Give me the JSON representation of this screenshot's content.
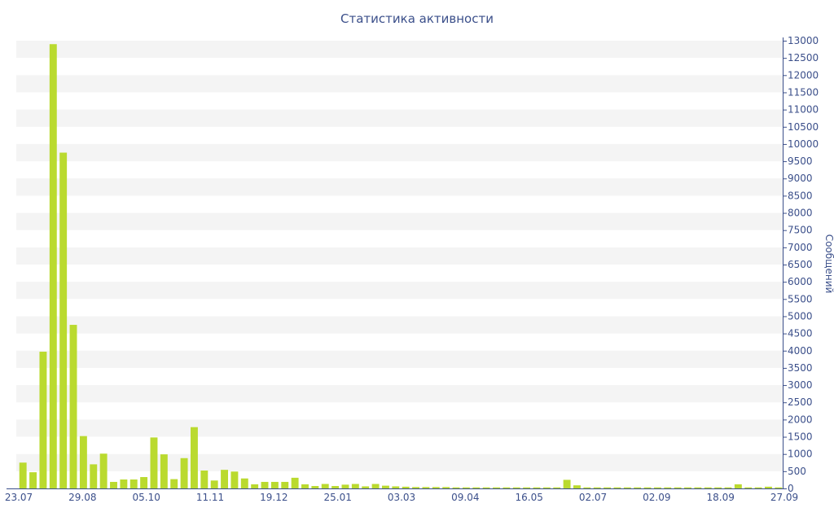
{
  "chart_data": {
    "type": "bar",
    "title": "Статистика активности",
    "xlabel": "",
    "ylabel": "Сообщений",
    "y_axis_side": "right",
    "ylim": [
      0,
      13000
    ],
    "ytick_step": 500,
    "grid": "alternating horizontal bands",
    "bar_color": "#bada2f",
    "x_tick_labels": [
      "23.07",
      "29.08",
      "05.10",
      "11.11",
      "19.12",
      "25.01",
      "03.03",
      "09.04",
      "16.05",
      "02.07",
      "02.09",
      "18.09",
      "27.09"
    ],
    "series": [
      {
        "values": [
          750,
          470,
          3970,
          12900,
          9750,
          4750,
          1520,
          700,
          1010,
          190,
          260,
          260,
          330,
          1480,
          990,
          270,
          880,
          1780,
          520,
          230,
          540,
          490,
          290,
          120,
          190,
          190,
          190,
          310,
          120,
          70,
          130,
          70,
          110,
          130,
          60,
          130,
          80,
          60,
          50,
          40,
          40,
          40,
          40,
          30,
          30,
          30,
          30,
          30,
          30,
          30,
          30,
          30,
          30,
          30,
          250,
          90,
          30,
          30,
          30,
          30,
          30,
          30,
          30,
          30,
          30,
          30,
          30,
          30,
          30,
          30,
          30,
          120,
          30,
          30,
          50,
          30
        ]
      }
    ]
  }
}
